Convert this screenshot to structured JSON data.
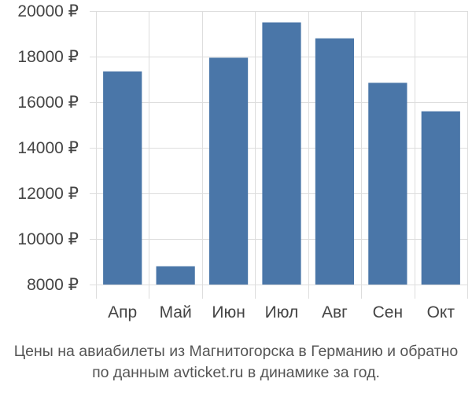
{
  "chart_data": {
    "type": "bar",
    "categories": [
      "Апр",
      "Май",
      "Июн",
      "Июл",
      "Авг",
      "Сен",
      "Окт"
    ],
    "values": [
      17350,
      8800,
      17950,
      19500,
      18800,
      16850,
      15600
    ],
    "ylim": [
      8000,
      20000
    ],
    "yticks": [
      8000,
      10000,
      12000,
      14000,
      16000,
      18000,
      20000
    ],
    "ytick_labels": [
      "8000 ₽",
      "10000 ₽",
      "12000 ₽",
      "14000 ₽",
      "16000 ₽",
      "18000 ₽",
      "20000 ₽"
    ],
    "grid": true,
    "bar_color": "#4a76a8",
    "grid_color": "#dddddd"
  },
  "caption": {
    "line1": "Цены на авиабилеты из Магнитогорска в Германию и обратно",
    "line2": "по данным avticket.ru в динамике за год."
  }
}
